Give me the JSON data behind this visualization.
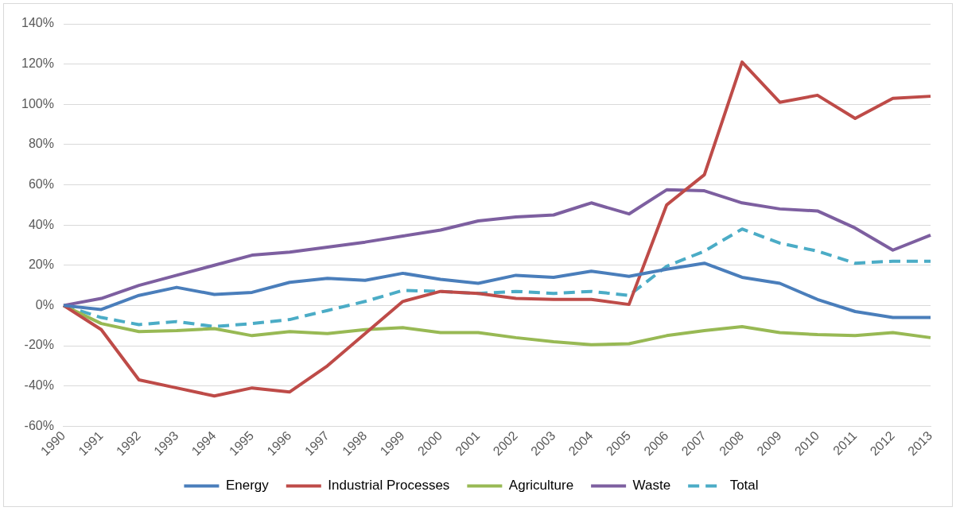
{
  "chart_data": {
    "type": "line",
    "categories": [
      "1990",
      "1991",
      "1992",
      "1993",
      "1994",
      "1995",
      "1996",
      "1997",
      "1998",
      "1999",
      "2000",
      "2001",
      "2002",
      "2003",
      "2004",
      "2005",
      "2006",
      "2007",
      "2008",
      "2009",
      "2010",
      "2011",
      "2012",
      "2013"
    ],
    "ylim": [
      -60,
      140
    ],
    "yticks": [
      {
        "value": -60,
        "label": "-60%"
      },
      {
        "value": -40,
        "label": "-40%"
      },
      {
        "value": -20,
        "label": "-20%"
      },
      {
        "value": 0,
        "label": "0%"
      },
      {
        "value": 20,
        "label": "20%"
      },
      {
        "value": 40,
        "label": "40%"
      },
      {
        "value": 60,
        "label": "60%"
      },
      {
        "value": 80,
        "label": "80%"
      },
      {
        "value": 100,
        "label": "100%"
      },
      {
        "value": 120,
        "label": "120%"
      },
      {
        "value": 140,
        "label": "140%"
      }
    ],
    "grid": "y",
    "legend": "bottom",
    "marker": "none",
    "series": [
      {
        "name": "Energy",
        "color": "#4a7ebb",
        "values": [
          0,
          -2,
          5,
          9,
          5.5,
          6.5,
          11.5,
          13.5,
          12.5,
          16,
          13,
          11,
          15,
          14,
          17,
          14.5,
          18,
          21,
          14,
          11,
          3,
          -3,
          -6,
          -6
        ]
      },
      {
        "name": "Industrial Processes",
        "color": "#be4b48",
        "values": [
          0,
          -12,
          -37,
          -41,
          -45,
          -41,
          -43,
          -30,
          -14,
          2,
          7,
          6,
          3.5,
          3,
          3,
          0.5,
          50,
          65,
          121,
          101,
          104.5,
          93,
          103,
          104
        ]
      },
      {
        "name": "Agriculture",
        "color": "#98b954",
        "values": [
          0,
          -9,
          -13,
          -12.5,
          -11.5,
          -15,
          -13,
          -14,
          -12,
          -11,
          -13.5,
          -13.5,
          -16,
          -18,
          -19.5,
          -19,
          -15,
          -12.5,
          -10.5,
          -13.5,
          -14.5,
          -15,
          -13.5,
          -16
        ]
      },
      {
        "name": "Waste",
        "color": "#7d5fa0",
        "values": [
          0,
          3.5,
          10,
          15,
          20,
          25,
          26.5,
          29,
          31.5,
          34.5,
          37.5,
          42,
          44,
          45,
          51,
          45.5,
          57.5,
          57,
          51,
          48,
          47,
          38.5,
          27.5,
          35
        ]
      },
      {
        "name": "Total",
        "color": "#4bacc6",
        "line_style": "dashed",
        "values": [
          0,
          -6,
          -9.5,
          -8,
          -10.5,
          -9,
          -7,
          -2.5,
          2,
          7.5,
          7,
          6,
          7,
          6,
          7,
          5,
          19.5,
          27,
          38,
          31,
          27,
          21,
          22,
          22
        ]
      }
    ]
  }
}
